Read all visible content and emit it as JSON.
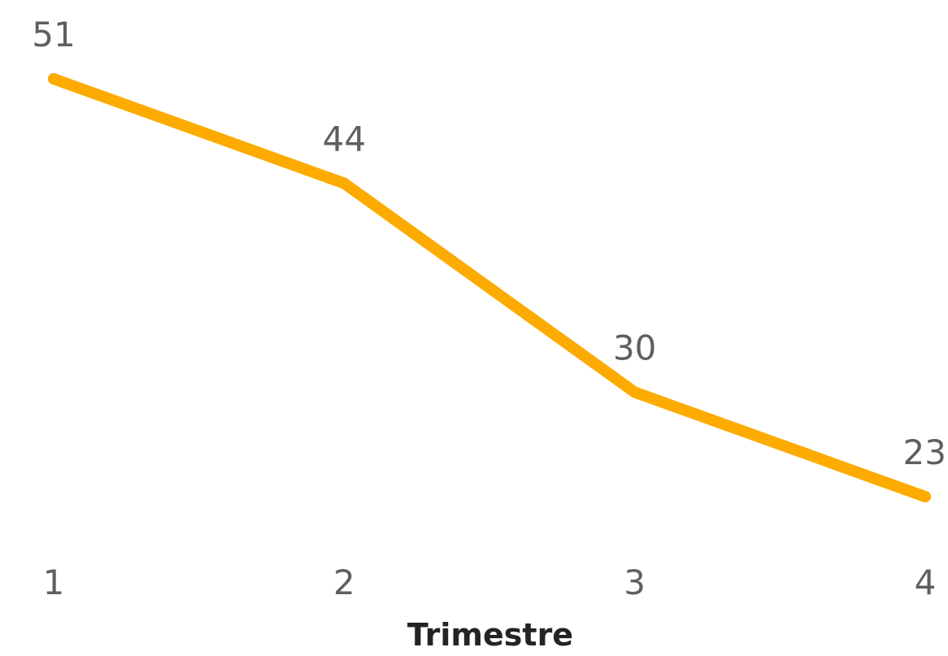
{
  "chart_data": {
    "type": "line",
    "categories": [
      "1",
      "2",
      "3",
      "4"
    ],
    "series": [
      {
        "values": [
          51,
          44,
          30,
          23
        ],
        "color": "#FDAB00"
      }
    ],
    "xlabel": "Trimestre",
    "ylabel": "",
    "ylim": [
      23,
      51
    ],
    "grid": false,
    "data_labels": true
  }
}
